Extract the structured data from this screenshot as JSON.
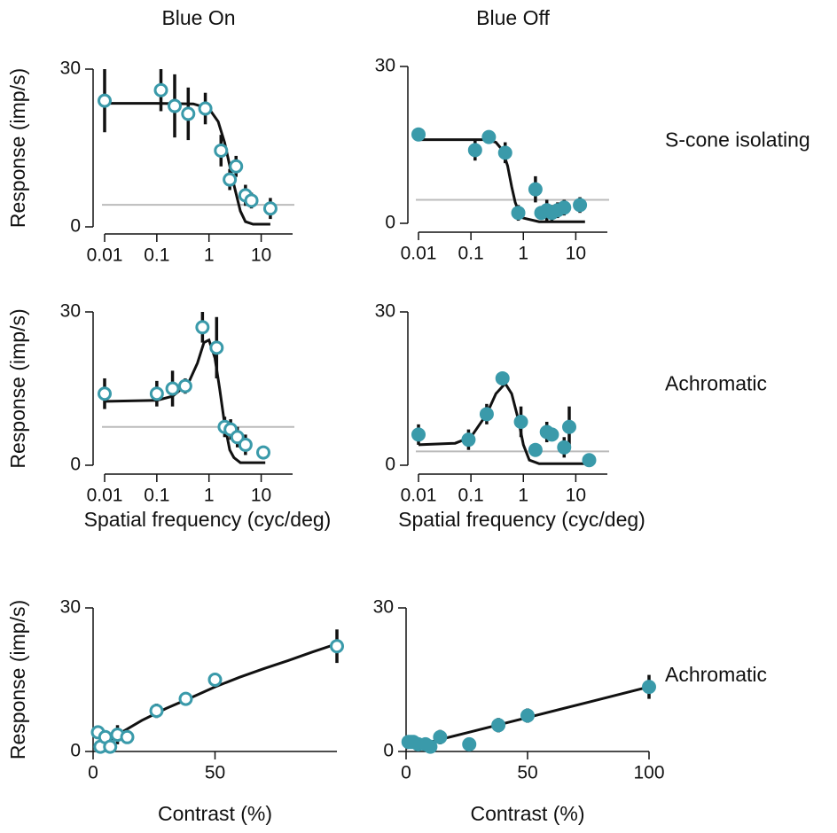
{
  "chart_data": [
    {
      "type": "scatter",
      "title": "Blue On",
      "ylabel": "Response (imp/s)",
      "xscale": "log",
      "x": [
        0.01,
        0.12,
        0.22,
        0.4,
        0.85,
        1.7,
        2.5,
        3.3,
        5,
        6.5,
        15
      ],
      "values": [
        24,
        26,
        23,
        21.5,
        22.5,
        14.5,
        9,
        11.5,
        6,
        5,
        3.5
      ],
      "errors": [
        6,
        4,
        6,
        5,
        3,
        3,
        2,
        2,
        2,
        1.5,
        2
      ],
      "color": "#3a9aaa",
      "marker_fill": "#ffffff",
      "fit_x": [
        0.01,
        0.1,
        0.5,
        1,
        1.5,
        2,
        3,
        4,
        5,
        7,
        10,
        15
      ],
      "fit_values": [
        23.5,
        23.5,
        23.4,
        22.5,
        20,
        16,
        8,
        3,
        1,
        0.5,
        0.5,
        0.5
      ],
      "fit_color": "#111111",
      "baseline": 4.2,
      "baseline_color": "#bbbbbb",
      "xlim": [
        0.01,
        40
      ],
      "xticks": [
        0.01,
        0.1,
        1,
        10
      ],
      "ylim": [
        0,
        30
      ],
      "yticks": [
        0,
        30
      ]
    },
    {
      "type": "scatter",
      "title": "Blue Off",
      "annotation": "S-cone isolating",
      "xscale": "log",
      "x": [
        0.01,
        0.12,
        0.22,
        0.45,
        0.8,
        1.7,
        2.2,
        2.8,
        3.5,
        4.5,
        6,
        12
      ],
      "values": [
        17,
        14,
        16.5,
        13.5,
        2,
        6.5,
        2,
        2.5,
        2,
        2.5,
        3,
        3.5
      ],
      "errors": [
        1,
        2,
        1,
        2,
        1.5,
        2.5,
        1,
        2,
        1.5,
        1.5,
        1.5,
        1.5
      ],
      "color": "#3a9aaa",
      "marker_fill": "#3a9aaa",
      "fit_x": [
        0.01,
        0.1,
        0.2,
        0.3,
        0.4,
        0.5,
        0.6,
        0.7,
        0.8,
        1,
        2,
        15
      ],
      "fit_values": [
        16,
        16,
        16,
        15.5,
        14,
        11,
        7,
        4,
        2.5,
        1,
        0.3,
        0.3
      ],
      "fit_color": "#111111",
      "baseline": 4.5,
      "baseline_color": "#bbbbbb",
      "xlim": [
        0.01,
        40
      ],
      "xticks": [
        0.01,
        0.1,
        1,
        10
      ],
      "ylim": [
        0,
        30
      ],
      "yticks": [
        0,
        30
      ]
    },
    {
      "type": "scatter",
      "ylabel": "Response (imp/s)",
      "xlabel": "Spatial frequency (cyc/deg)",
      "xscale": "log",
      "x": [
        0.01,
        0.1,
        0.2,
        0.35,
        0.75,
        1.4,
        2,
        2.6,
        3.5,
        5,
        11
      ],
      "values": [
        14,
        14,
        15,
        15.5,
        27,
        23,
        7.5,
        7,
        5.5,
        4,
        2.5
      ],
      "errors": [
        3,
        2.5,
        3.5,
        1.5,
        3,
        6,
        2,
        2,
        2,
        2,
        1
      ],
      "color": "#3a9aaa",
      "marker_fill": "#ffffff",
      "fit_x": [
        0.01,
        0.1,
        0.2,
        0.4,
        0.6,
        0.8,
        1,
        1.3,
        1.6,
        2,
        2.5,
        3,
        4,
        6,
        12
      ],
      "fit_values": [
        12.5,
        12.7,
        13.5,
        16,
        20,
        24,
        24.5,
        21,
        15,
        8,
        3,
        1.5,
        0.5,
        0.5,
        0.5
      ],
      "fit_color": "#111111",
      "baseline": 7.5,
      "baseline_color": "#bbbbbb",
      "xlim": [
        0.01,
        40
      ],
      "xticks": [
        0.01,
        0.1,
        1,
        10
      ],
      "ylim": [
        0,
        30
      ],
      "yticks": [
        0,
        30
      ]
    },
    {
      "type": "scatter",
      "annotation": "Achromatic",
      "xlabel": "Spatial frequency (cyc/deg)",
      "xscale": "log",
      "x": [
        0.01,
        0.09,
        0.2,
        0.4,
        0.9,
        1.7,
        2.8,
        3.5,
        6,
        7.5,
        18
      ],
      "values": [
        6,
        5,
        10,
        17,
        8.5,
        3,
        6.5,
        6,
        3.5,
        7.5,
        1
      ],
      "errors": [
        2,
        2,
        2,
        1,
        3,
        1,
        2,
        1,
        2,
        4,
        0.5
      ],
      "color": "#3a9aaa",
      "marker_fill": "#3a9aaa",
      "fit_x": [
        0.01,
        0.05,
        0.1,
        0.2,
        0.3,
        0.45,
        0.6,
        0.8,
        1,
        1.3,
        2,
        15
      ],
      "fit_values": [
        4,
        4.3,
        5.5,
        10,
        14,
        16,
        14,
        9,
        4,
        1,
        0.3,
        0.3
      ],
      "fit_color": "#111111",
      "baseline": 2.7,
      "baseline_color": "#bbbbbb",
      "xlim": [
        0.01,
        40
      ],
      "xticks": [
        0.01,
        0.1,
        1,
        10
      ],
      "ylim": [
        0,
        30
      ],
      "yticks": [
        0,
        30
      ]
    },
    {
      "type": "scatter",
      "ylabel": "Response (imp/s)",
      "xlabel": "Contrast (%)",
      "xscale": "linear",
      "x": [
        2,
        3,
        5,
        7,
        10,
        14,
        26,
        38,
        50,
        100
      ],
      "values": [
        4,
        1,
        3,
        1,
        3.5,
        3,
        8.5,
        11,
        15,
        22
      ],
      "errors": [
        1,
        1,
        1,
        1,
        2,
        1,
        1.5,
        1,
        1,
        3.5
      ],
      "color": "#3a9aaa",
      "marker_fill": "#ffffff",
      "fit_x": [
        2,
        10,
        20,
        30,
        40,
        50,
        60,
        70,
        80,
        90,
        100
      ],
      "fit_values": [
        0.5,
        3.5,
        6.5,
        9,
        11.2,
        13.5,
        15.5,
        17.3,
        19,
        20.8,
        22.5
      ],
      "fit_color": "#111111",
      "xlim": [
        0,
        100
      ],
      "xticks": [
        0,
        50
      ],
      "ylim": [
        0,
        30
      ],
      "yticks": [
        0,
        30
      ]
    },
    {
      "type": "scatter",
      "annotation": "Achromatic",
      "xlabel": "Contrast (%)",
      "xscale": "linear",
      "x": [
        1,
        2,
        3,
        5,
        8,
        10,
        14,
        26,
        38,
        50,
        100
      ],
      "values": [
        2,
        2,
        2,
        1.5,
        1.5,
        1,
        3,
        1.5,
        5.5,
        7.5,
        13.5
      ],
      "errors": [
        1,
        1,
        1,
        1,
        1,
        1,
        1.5,
        1,
        1.5,
        1.5,
        2.5
      ],
      "color": "#3a9aaa",
      "marker_fill": "#3a9aaa",
      "fit_x": [
        0,
        25,
        50,
        75,
        100
      ],
      "fit_values": [
        0.7,
        3.9,
        7.1,
        10.3,
        13.5
      ],
      "fit_color": "#111111",
      "xlim": [
        0,
        100
      ],
      "xticks": [
        0,
        50,
        100
      ],
      "ylim": [
        0,
        30
      ],
      "yticks": [
        0,
        30
      ]
    }
  ]
}
